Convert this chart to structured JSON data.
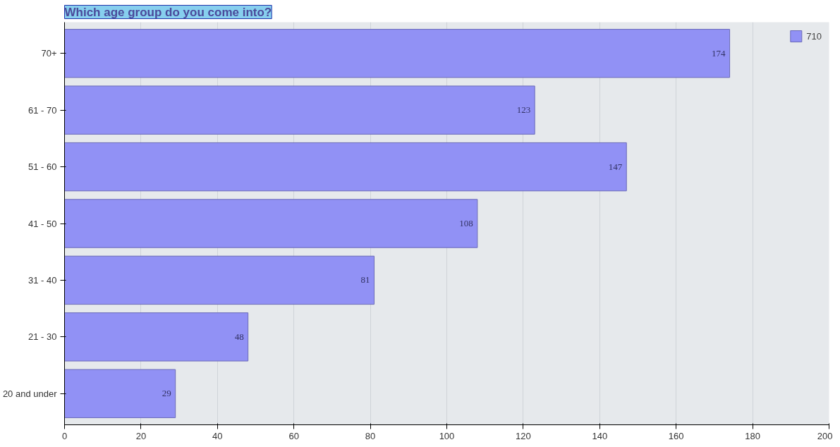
{
  "chart_data": {
    "type": "bar",
    "orientation": "horizontal",
    "title": "Which age group do you come into?",
    "categories": [
      "70+",
      "61 - 70",
      "51 - 60",
      "41 - 50",
      "31 - 40",
      "21 - 30",
      "20 and under"
    ],
    "series": [
      {
        "name": "710",
        "color": "#9191f5",
        "values": [
          174,
          123,
          147,
          108,
          81,
          48,
          29
        ]
      }
    ],
    "xlim": [
      0,
      200
    ],
    "xticks": [
      0,
      20,
      40,
      60,
      80,
      100,
      120,
      140,
      160,
      180,
      200
    ],
    "data_labels": true,
    "grid": "x",
    "legend": "top right"
  }
}
